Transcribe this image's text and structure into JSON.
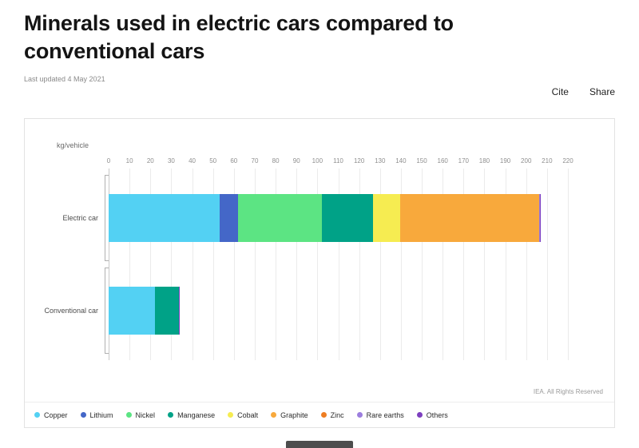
{
  "header": {
    "title": "Minerals used in electric cars compared to conventional cars",
    "last_updated": "Last updated 4 May 2021"
  },
  "actions": {
    "cite": "Cite",
    "share": "Share"
  },
  "chart": {
    "unit_label": "kg/vehicle",
    "credit": "IEA. All Rights Reserved"
  },
  "chart_data": {
    "type": "bar",
    "orientation": "horizontal",
    "stacked": true,
    "title": "Minerals used in electric cars compared to conventional cars",
    "xlabel": "kg/vehicle",
    "ylabel": "",
    "grid": true,
    "legend_position": "bottom",
    "xlim": [
      0,
      220
    ],
    "x_ticks": [
      0,
      10,
      20,
      30,
      40,
      50,
      60,
      70,
      80,
      90,
      100,
      110,
      120,
      130,
      140,
      150,
      160,
      170,
      180,
      190,
      200,
      210,
      220
    ],
    "categories": [
      "Electric car",
      "Conventional car"
    ],
    "series": [
      {
        "name": "Copper",
        "color": "#53d1f3",
        "values": [
          53.2,
          22.3
        ]
      },
      {
        "name": "Lithium",
        "color": "#4467c8",
        "values": [
          8.9,
          0
        ]
      },
      {
        "name": "Nickel",
        "color": "#5ce483",
        "values": [
          39.9,
          0
        ]
      },
      {
        "name": "Manganese",
        "color": "#00a287",
        "values": [
          24.5,
          11.2
        ]
      },
      {
        "name": "Cobalt",
        "color": "#f6ec51",
        "values": [
          13.3,
          0
        ]
      },
      {
        "name": "Graphite",
        "color": "#f8a93c",
        "values": [
          66.3,
          0
        ]
      },
      {
        "name": "Zinc",
        "color": "#ee7d22",
        "values": [
          0.1,
          0.1
        ]
      },
      {
        "name": "Rare earths",
        "color": "#9c7ede",
        "values": [
          0.5,
          0
        ]
      },
      {
        "name": "Others",
        "color": "#7d3fbf",
        "values": [
          0.3,
          0.3
        ]
      }
    ]
  }
}
